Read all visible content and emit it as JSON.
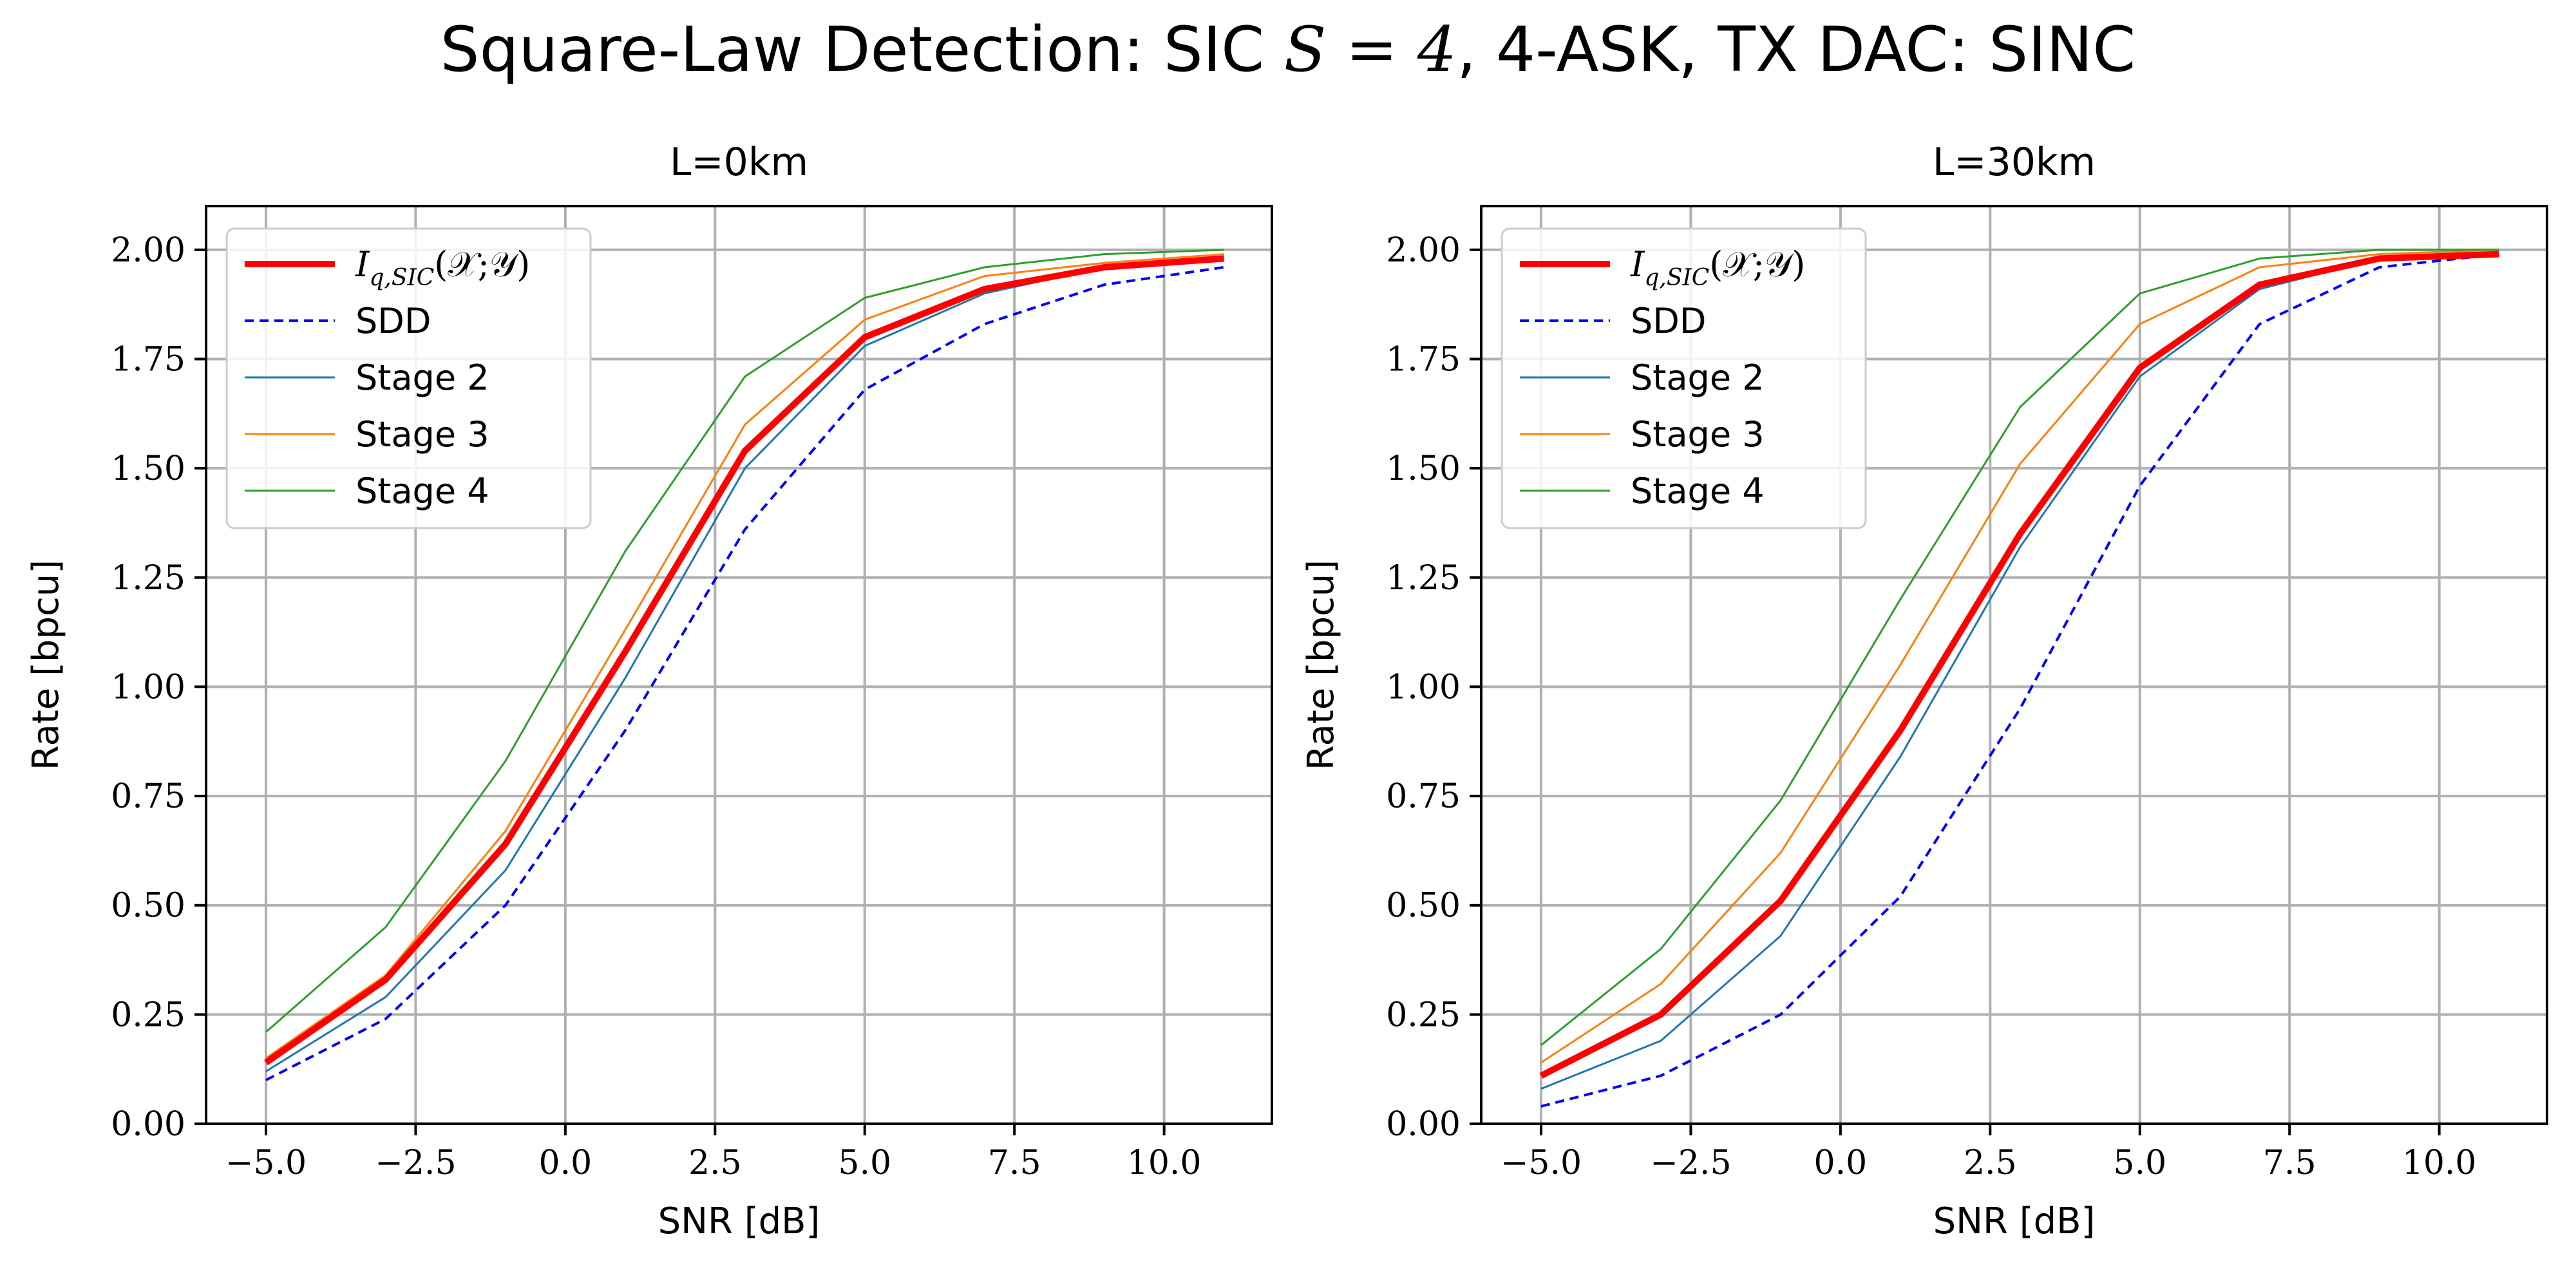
{
  "figure": {
    "title_prefix": "Square-Law Detection: SIC ",
    "title_math": "S = 4",
    "title_suffix": ", 4-ASK, TX DAC: SINC"
  },
  "colors": {
    "iq": "#ff0000",
    "sdd": "#0000ff",
    "stage2": "#1f77b4",
    "stage3": "#ff7f0e",
    "stage4": "#2ca02c",
    "grid": "#b0b0b0"
  },
  "chart_data": [
    {
      "type": "line",
      "title": "L=0km",
      "xlabel": "SNR [dB]",
      "ylabel": "Rate [bpcu]",
      "xlim": [
        -6.0,
        11.8
      ],
      "ylim": [
        0.0,
        2.1
      ],
      "xticks": [
        -5.0,
        -2.5,
        0.0,
        2.5,
        5.0,
        7.5,
        10.0
      ],
      "xtick_labels": [
        "−5.0",
        "−2.5",
        "0.0",
        "2.5",
        "5.0",
        "7.5",
        "10.0"
      ],
      "yticks": [
        0.0,
        0.25,
        0.5,
        0.75,
        1.0,
        1.25,
        1.5,
        1.75,
        2.0
      ],
      "ytick_labels": [
        "0.00",
        "0.25",
        "0.50",
        "0.75",
        "1.00",
        "1.25",
        "1.50",
        "1.75",
        "2.00"
      ],
      "grid": true,
      "legend_position": "top-left",
      "x": [
        -5,
        -3,
        -1,
        1,
        3,
        5,
        7,
        9,
        11
      ],
      "series": [
        {
          "key": "iq",
          "name": "I_{q,SIC}(𝒳;𝒴)",
          "style": "solid-thick",
          "values": [
            0.14,
            0.33,
            0.64,
            1.08,
            1.54,
            1.8,
            1.91,
            1.96,
            1.98
          ]
        },
        {
          "key": "sdd",
          "name": "SDD",
          "style": "dashed",
          "values": [
            0.1,
            0.24,
            0.5,
            0.9,
            1.36,
            1.68,
            1.83,
            1.92,
            1.96
          ]
        },
        {
          "key": "stage2",
          "name": "Stage 2",
          "style": "thin",
          "values": [
            0.12,
            0.29,
            0.58,
            1.02,
            1.5,
            1.78,
            1.9,
            1.96,
            1.98
          ]
        },
        {
          "key": "stage3",
          "name": "Stage 3",
          "style": "thin",
          "values": [
            0.15,
            0.34,
            0.67,
            1.13,
            1.6,
            1.84,
            1.94,
            1.97,
            1.99
          ]
        },
        {
          "key": "stage4",
          "name": "Stage 4",
          "style": "thin",
          "values": [
            0.21,
            0.45,
            0.83,
            1.31,
            1.71,
            1.89,
            1.96,
            1.99,
            2.0
          ]
        }
      ]
    },
    {
      "type": "line",
      "title": "L=30km",
      "xlabel": "SNR [dB]",
      "ylabel": "Rate [bpcu]",
      "xlim": [
        -6.0,
        11.8
      ],
      "ylim": [
        0.0,
        2.1
      ],
      "xticks": [
        -5.0,
        -2.5,
        0.0,
        2.5,
        5.0,
        7.5,
        10.0
      ],
      "xtick_labels": [
        "−5.0",
        "−2.5",
        "0.0",
        "2.5",
        "5.0",
        "7.5",
        "10.0"
      ],
      "yticks": [
        0.0,
        0.25,
        0.5,
        0.75,
        1.0,
        1.25,
        1.5,
        1.75,
        2.0
      ],
      "ytick_labels": [
        "0.00",
        "0.25",
        "0.50",
        "0.75",
        "1.00",
        "1.25",
        "1.50",
        "1.75",
        "2.00"
      ],
      "grid": true,
      "legend_position": "top-left",
      "x": [
        -5,
        -3,
        -1,
        1,
        3,
        5,
        7,
        9,
        11
      ],
      "series": [
        {
          "key": "iq",
          "name": "I_{q,SIC}(𝒳;𝒴)",
          "style": "solid-thick",
          "values": [
            0.11,
            0.25,
            0.51,
            0.9,
            1.35,
            1.73,
            1.92,
            1.98,
            1.99
          ]
        },
        {
          "key": "sdd",
          "name": "SDD",
          "style": "dashed",
          "values": [
            0.04,
            0.11,
            0.25,
            0.52,
            0.95,
            1.46,
            1.83,
            1.96,
            1.99
          ]
        },
        {
          "key": "stage2",
          "name": "Stage 2",
          "style": "thin",
          "values": [
            0.08,
            0.19,
            0.43,
            0.84,
            1.32,
            1.71,
            1.91,
            1.98,
            1.99
          ]
        },
        {
          "key": "stage3",
          "name": "Stage 3",
          "style": "thin",
          "values": [
            0.14,
            0.32,
            0.62,
            1.05,
            1.51,
            1.83,
            1.96,
            1.99,
            2.0
          ]
        },
        {
          "key": "stage4",
          "name": "Stage 4",
          "style": "thin",
          "values": [
            0.18,
            0.4,
            0.74,
            1.2,
            1.64,
            1.9,
            1.98,
            2.0,
            2.0
          ]
        }
      ]
    }
  ]
}
